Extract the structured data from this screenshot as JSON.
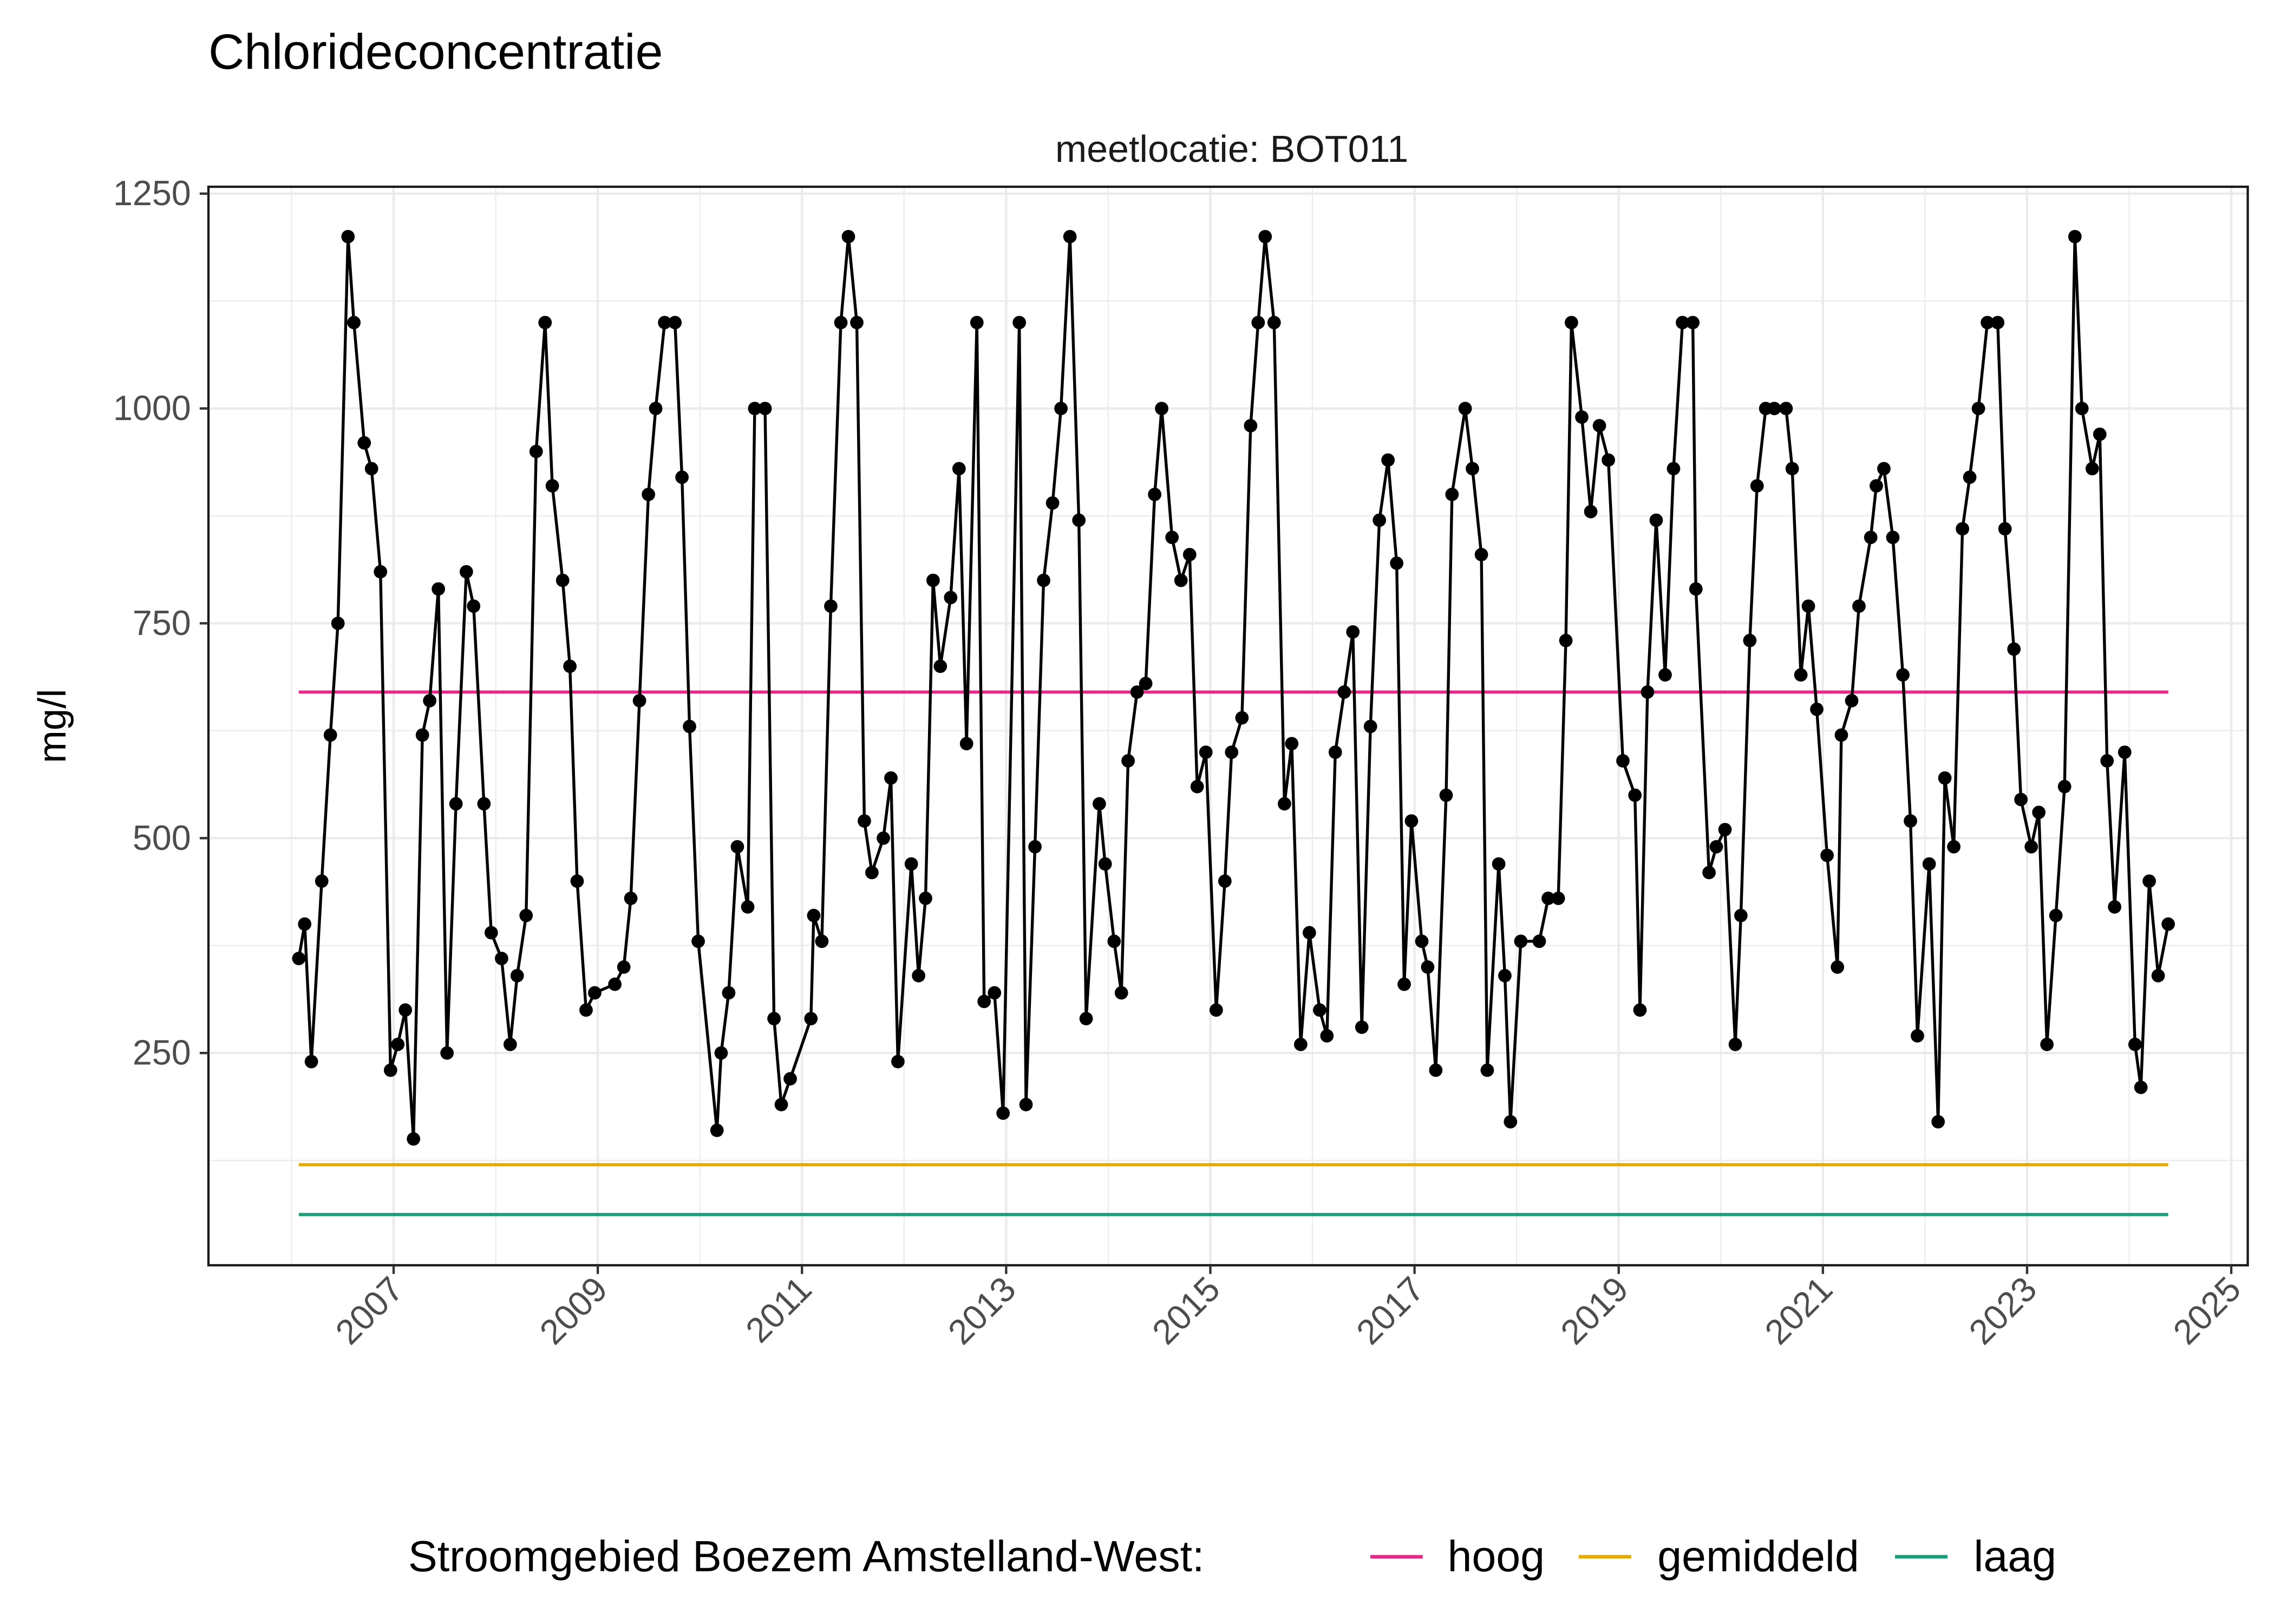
{
  "chart_data": {
    "type": "line",
    "title": "Chlorideconcentratie",
    "facet_label": "meetlocatie: BOT011",
    "xlabel": "",
    "ylabel": "mg/l",
    "ylim": [
      3,
      1258
    ],
    "xlim": [
      "2005-03-10",
      "2025-03-01"
    ],
    "yticks": [
      250,
      500,
      750,
      1000,
      1250
    ],
    "xticks": [
      "2007",
      "2009",
      "2011",
      "2013",
      "2015",
      "2017",
      "2019",
      "2021",
      "2023",
      "2025"
    ],
    "grid": true,
    "legend": {
      "position": "bottom",
      "title": "Stroomgebied Boezem Amstelland-West:",
      "entries": [
        {
          "label": "hoog",
          "color": "#E7298A"
        },
        {
          "label": "gemiddeld",
          "color": "#E6AB02"
        },
        {
          "label": "laag",
          "color": "#1B9E77"
        }
      ]
    },
    "reference_lines": [
      {
        "name": "hoog",
        "value": 670,
        "color": "#E7298A"
      },
      {
        "name": "gemiddeld",
        "value": 120,
        "color": "#E6AB02"
      },
      {
        "name": "laag",
        "value": 62,
        "color": "#1B9E77"
      }
    ],
    "series": [
      {
        "color": "#000000",
        "x": [
          "2006-01-27",
          "2006-02-17",
          "2006-03-13",
          "2006-04-19",
          "2006-05-20",
          "2006-06-16",
          "2006-07-22",
          "2006-08-12",
          "2006-09-18",
          "2006-10-14",
          "2006-11-15",
          "2006-12-21",
          "2007-01-16",
          "2007-02-12",
          "2007-03-13",
          "2007-04-14",
          "2007-05-10",
          "2007-06-10",
          "2007-07-11",
          "2007-08-12",
          "2007-09-18",
          "2007-10-14",
          "2007-11-20",
          "2007-12-16",
          "2008-01-22",
          "2008-02-22",
          "2008-03-18",
          "2008-04-19",
          "2008-05-25",
          "2008-06-26",
          "2008-07-22",
          "2008-08-28",
          "2008-09-23",
          "2008-10-19",
          "2008-11-20",
          "2008-12-21",
          "2009-03-03",
          "2009-04-04",
          "2009-04-29",
          "2009-05-30",
          "2009-07-01",
          "2009-07-27",
          "2009-08-28",
          "2009-10-04",
          "2009-10-29",
          "2009-11-25",
          "2009-12-26",
          "2010-03-03",
          "2010-03-18",
          "2010-04-14",
          "2010-05-15",
          "2010-06-21",
          "2010-07-16",
          "2010-08-22",
          "2010-09-23",
          "2010-10-19",
          "2010-11-20",
          "2011-02-02",
          "2011-02-12",
          "2011-03-13",
          "2011-04-14",
          "2011-05-20",
          "2011-06-16",
          "2011-07-16",
          "2011-08-12",
          "2011-09-08",
          "2011-10-19",
          "2011-11-15",
          "2011-12-10",
          "2012-01-27",
          "2012-02-22",
          "2012-03-18",
          "2012-04-14",
          "2012-05-10",
          "2012-06-16",
          "2012-07-16",
          "2012-08-12",
          "2012-09-18",
          "2012-10-14",
          "2012-11-20",
          "2012-12-21",
          "2013-02-17",
          "2013-03-13",
          "2013-04-14",
          "2013-05-15",
          "2013-06-16",
          "2013-07-16",
          "2013-08-17",
          "2013-09-18",
          "2013-10-14",
          "2013-11-30",
          "2013-12-21",
          "2014-01-22",
          "2014-02-17",
          "2014-03-13",
          "2014-04-14",
          "2014-05-15",
          "2014-06-16",
          "2014-07-11",
          "2014-08-17",
          "2014-09-18",
          "2014-10-19",
          "2014-11-15",
          "2014-12-16",
          "2015-01-22",
          "2015-02-22",
          "2015-03-18",
          "2015-04-24",
          "2015-05-25",
          "2015-06-21",
          "2015-07-16",
          "2015-08-17",
          "2015-09-23",
          "2015-10-19",
          "2015-11-20",
          "2015-12-21",
          "2016-01-27",
          "2016-02-22",
          "2016-03-23",
          "2016-04-24",
          "2016-05-25",
          "2016-06-26",
          "2016-07-27",
          "2016-08-28",
          "2016-09-28",
          "2016-10-29",
          "2016-11-25",
          "2016-12-21",
          "2017-01-27",
          "2017-02-17",
          "2017-03-18",
          "2017-04-24",
          "2017-05-15",
          "2017-07-01",
          "2017-07-27",
          "2017-08-28",
          "2017-09-18",
          "2017-10-29",
          "2017-11-20",
          "2017-12-10",
          "2018-01-16",
          "2018-03-23",
          "2018-04-24",
          "2018-05-30",
          "2018-06-26",
          "2018-07-16",
          "2018-08-22",
          "2018-09-23",
          "2018-10-24",
          "2018-11-25",
          "2019-01-16",
          "2019-02-28",
          "2019-03-18",
          "2019-04-14",
          "2019-05-15",
          "2019-06-16",
          "2019-07-16",
          "2019-08-17",
          "2019-09-23",
          "2019-10-04",
          "2019-11-20",
          "2019-12-16",
          "2020-01-16",
          "2020-02-22",
          "2020-03-13",
          "2020-04-14",
          "2020-05-10",
          "2020-06-10",
          "2020-07-11",
          "2020-08-22",
          "2020-09-13",
          "2020-10-14",
          "2020-11-10",
          "2020-12-10",
          "2021-01-16",
          "2021-02-22",
          "2021-03-08",
          "2021-04-14",
          "2021-05-10",
          "2021-06-21",
          "2021-07-11",
          "2021-08-07",
          "2021-09-08",
          "2021-10-14",
          "2021-11-10",
          "2021-12-05",
          "2022-01-16",
          "2022-02-17",
          "2022-03-13",
          "2022-04-14",
          "2022-05-15",
          "2022-06-10",
          "2022-07-11",
          "2022-08-12",
          "2022-09-18",
          "2022-10-14",
          "2022-11-15",
          "2022-12-10",
          "2023-01-16",
          "2023-02-12",
          "2023-03-13",
          "2023-04-14",
          "2023-05-15",
          "2023-06-21",
          "2023-07-16",
          "2023-08-22",
          "2023-09-18",
          "2023-10-14",
          "2023-11-10",
          "2023-12-16",
          "2024-01-22",
          "2024-02-12",
          "2024-03-13",
          "2024-04-14",
          "2024-05-20"
        ],
        "y": [
          360,
          400,
          240,
          450,
          620,
          750,
          1200,
          1100,
          960,
          930,
          810,
          230,
          260,
          300,
          150,
          620,
          660,
          790,
          250,
          540,
          810,
          770,
          540,
          390,
          360,
          260,
          340,
          410,
          950,
          1100,
          910,
          800,
          700,
          450,
          300,
          320,
          330,
          350,
          430,
          660,
          900,
          1000,
          1100,
          1100,
          920,
          630,
          380,
          160,
          250,
          320,
          490,
          420,
          1000,
          1000,
          290,
          190,
          220,
          290,
          410,
          380,
          770,
          1100,
          1200,
          1100,
          520,
          460,
          500,
          570,
          240,
          470,
          340,
          430,
          800,
          700,
          780,
          930,
          610,
          1100,
          310,
          320,
          180,
          1100,
          190,
          490,
          800,
          890,
          1000,
          1200,
          870,
          290,
          540,
          470,
          380,
          320,
          590,
          670,
          680,
          900,
          1000,
          850,
          800,
          830,
          560,
          600,
          300,
          450,
          600,
          640,
          980,
          1100,
          1200,
          1100,
          540,
          610,
          260,
          390,
          300,
          270,
          600,
          670,
          740,
          280,
          630,
          870,
          940,
          820,
          330,
          520,
          380,
          350,
          230,
          550,
          900,
          1000,
          930,
          830,
          230,
          470,
          340,
          170,
          380,
          380,
          430,
          430,
          730,
          1100,
          990,
          880,
          980,
          940,
          590,
          550,
          300,
          670,
          870,
          690,
          930,
          1100,
          1100,
          790,
          460,
          490,
          510,
          260,
          410,
          730,
          910,
          1000,
          1000,
          1000,
          930,
          690,
          770,
          650,
          480,
          350,
          620,
          660,
          770,
          850,
          910,
          930,
          850,
          690,
          520,
          270,
          470,
          170,
          570,
          490,
          860,
          920,
          1000,
          1100,
          1100,
          860,
          720,
          545,
          490,
          530,
          260,
          410,
          560,
          1200,
          1000,
          930,
          970,
          590,
          420,
          600,
          260,
          210,
          450,
          340,
          400
        ]
      }
    ]
  }
}
